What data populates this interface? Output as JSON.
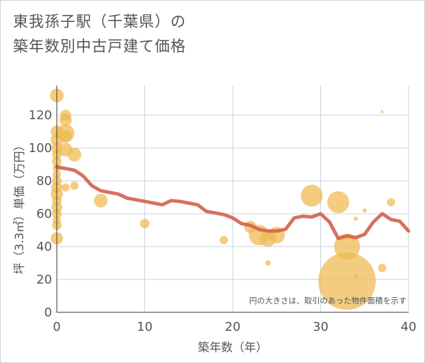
{
  "title": {
    "line1": "東我孫子駅（千葉県）の",
    "line2": "築年数別中古戸建て価格"
  },
  "note": "円の大きさは、取引のあった物件面積を示す",
  "chart_data": {
    "type": "scatter",
    "title": "東我孫子駅（千葉県）の築年数別中古戸建て価格",
    "xlabel": "築年数（年）",
    "ylabel": "坪（3.3㎡）単価（万円）",
    "xlim": [
      0,
      40
    ],
    "ylim": [
      0,
      138
    ],
    "xticks": [
      0,
      10,
      20,
      30,
      40
    ],
    "yticks": [
      0,
      20,
      40,
      60,
      80,
      100,
      120
    ],
    "grid": true,
    "colors": {
      "bubble": "#f0b94f",
      "line": "#d4614a",
      "grid": "#c5d3df"
    },
    "series": [
      {
        "type": "bubble",
        "points": [
          {
            "x": 0,
            "y": 132,
            "s": 10
          },
          {
            "x": 0,
            "y": 110,
            "s": 9
          },
          {
            "x": 0,
            "y": 105,
            "s": 9
          },
          {
            "x": 0,
            "y": 100,
            "s": 8
          },
          {
            "x": 0,
            "y": 96,
            "s": 7
          },
          {
            "x": 0,
            "y": 92,
            "s": 7
          },
          {
            "x": 0,
            "y": 88,
            "s": 6
          },
          {
            "x": 0,
            "y": 84,
            "s": 6
          },
          {
            "x": 0,
            "y": 80,
            "s": 7
          },
          {
            "x": 0,
            "y": 76,
            "s": 8
          },
          {
            "x": 0,
            "y": 72,
            "s": 9
          },
          {
            "x": 0,
            "y": 68,
            "s": 7
          },
          {
            "x": 0,
            "y": 64,
            "s": 8
          },
          {
            "x": 0,
            "y": 60,
            "s": 7
          },
          {
            "x": 0,
            "y": 56,
            "s": 6
          },
          {
            "x": 0,
            "y": 53,
            "s": 7
          },
          {
            "x": 0,
            "y": 45,
            "s": 9
          },
          {
            "x": 1,
            "y": 120,
            "s": 8
          },
          {
            "x": 1,
            "y": 117,
            "s": 9
          },
          {
            "x": 1,
            "y": 109,
            "s": 13
          },
          {
            "x": 1,
            "y": 107,
            "s": 9
          },
          {
            "x": 1,
            "y": 99,
            "s": 10
          },
          {
            "x": 1,
            "y": 76,
            "s": 6
          },
          {
            "x": 2,
            "y": 96,
            "s": 10
          },
          {
            "x": 2,
            "y": 77,
            "s": 6
          },
          {
            "x": 5,
            "y": 68,
            "s": 10
          },
          {
            "x": 10,
            "y": 54,
            "s": 7
          },
          {
            "x": 19,
            "y": 44,
            "s": 6
          },
          {
            "x": 22,
            "y": 52,
            "s": 9
          },
          {
            "x": 23,
            "y": 47,
            "s": 15
          },
          {
            "x": 24,
            "y": 45,
            "s": 12
          },
          {
            "x": 24,
            "y": 30,
            "s": 4
          },
          {
            "x": 25,
            "y": 47,
            "s": 12
          },
          {
            "x": 29,
            "y": 71,
            "s": 16
          },
          {
            "x": 32,
            "y": 67,
            "s": 16
          },
          {
            "x": 33,
            "y": 40,
            "s": 19
          },
          {
            "x": 33,
            "y": 19,
            "s": 42
          },
          {
            "x": 34,
            "y": 57,
            "s": 3
          },
          {
            "x": 34,
            "y": 22,
            "s": 3
          },
          {
            "x": 35,
            "y": 62,
            "s": 3
          },
          {
            "x": 37,
            "y": 122,
            "s": 2
          },
          {
            "x": 37,
            "y": 27,
            "s": 6
          },
          {
            "x": 38,
            "y": 67,
            "s": 6
          }
        ]
      },
      {
        "type": "line",
        "points": [
          {
            "x": 0,
            "y": 88.5
          },
          {
            "x": 1,
            "y": 87.5
          },
          {
            "x": 2,
            "y": 86.5
          },
          {
            "x": 3,
            "y": 83
          },
          {
            "x": 4,
            "y": 77
          },
          {
            "x": 5,
            "y": 74
          },
          {
            "x": 6,
            "y": 73
          },
          {
            "x": 7,
            "y": 72
          },
          {
            "x": 8,
            "y": 69.5
          },
          {
            "x": 9,
            "y": 68.5
          },
          {
            "x": 10,
            "y": 67.5
          },
          {
            "x": 11,
            "y": 66.5
          },
          {
            "x": 12,
            "y": 65.5
          },
          {
            "x": 13,
            "y": 68
          },
          {
            "x": 14,
            "y": 67.5
          },
          {
            "x": 15,
            "y": 66.5
          },
          {
            "x": 16,
            "y": 65.5
          },
          {
            "x": 17,
            "y": 61.5
          },
          {
            "x": 18,
            "y": 60.5
          },
          {
            "x": 19,
            "y": 59.5
          },
          {
            "x": 20,
            "y": 57.5
          },
          {
            "x": 21,
            "y": 54
          },
          {
            "x": 22,
            "y": 53
          },
          {
            "x": 23,
            "y": 50.5
          },
          {
            "x": 24,
            "y": 49.5
          },
          {
            "x": 25,
            "y": 49.5
          },
          {
            "x": 26,
            "y": 50.5
          },
          {
            "x": 27,
            "y": 57.5
          },
          {
            "x": 28,
            "y": 58.5
          },
          {
            "x": 29,
            "y": 58
          },
          {
            "x": 30,
            "y": 60
          },
          {
            "x": 31,
            "y": 55
          },
          {
            "x": 32,
            "y": 45
          },
          {
            "x": 33,
            "y": 46.5
          },
          {
            "x": 34,
            "y": 45.5
          },
          {
            "x": 35,
            "y": 47.5
          },
          {
            "x": 36,
            "y": 55
          },
          {
            "x": 37,
            "y": 60
          },
          {
            "x": 38,
            "y": 56.5
          },
          {
            "x": 39,
            "y": 55.5
          },
          {
            "x": 40,
            "y": 49.5
          }
        ]
      }
    ]
  }
}
